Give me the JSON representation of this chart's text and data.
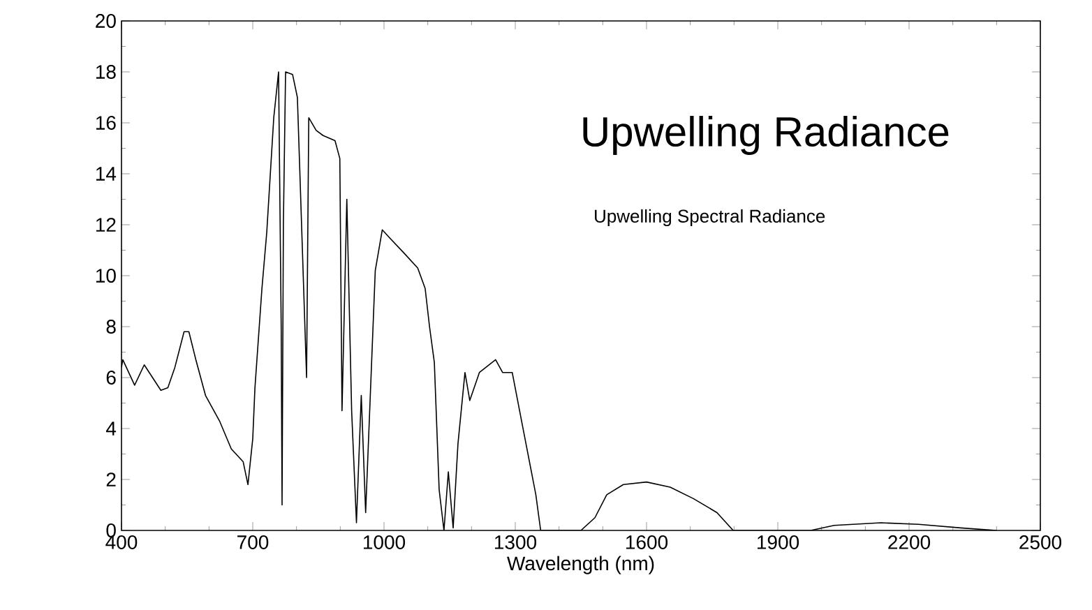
{
  "chart_data": {
    "type": "line",
    "title": "Upwelling Radiance",
    "subtitle": "Upwelling Spectral Radiance",
    "xlabel": "Wavelength (nm)",
    "xlim": [
      400,
      2500
    ],
    "ylim": [
      0,
      20
    ],
    "xticks": [
      400,
      700,
      1000,
      1300,
      1600,
      1900,
      2200,
      2500
    ],
    "yticks": [
      0,
      2,
      4,
      6,
      8,
      10,
      12,
      14,
      16,
      18,
      20
    ],
    "series": [
      {
        "color": "#000000",
        "x": [
          400,
          403,
          430,
          452,
          490,
          506,
          522,
          543,
          554,
          570,
          592,
          624,
          651,
          678,
          689,
          700,
          705,
          721,
          732,
          748,
          759,
          765,
          767,
          770,
          775,
          791,
          802,
          807,
          823,
          828,
          845,
          861,
          888,
          899,
          904,
          915,
          926,
          937,
          948,
          958,
          980,
          996,
          1012,
          1045,
          1077,
          1094,
          1104,
          1115,
          1126,
          1137,
          1147,
          1158,
          1169,
          1185,
          1196,
          1218,
          1255,
          1271,
          1293,
          1320,
          1347,
          1358,
          1450,
          1482,
          1509,
          1547,
          1600,
          1654,
          1707,
          1761,
          1798,
          1975,
          2029,
          2136,
          2222,
          2318,
          2400
        ],
        "values": [
          6.4,
          6.7,
          5.7,
          6.5,
          5.5,
          5.6,
          6.4,
          7.8,
          7.8,
          6.7,
          5.3,
          4.3,
          3.2,
          2.7,
          1.8,
          3.6,
          5.6,
          9.5,
          11.7,
          16.2,
          18,
          8,
          1,
          12,
          18,
          17.9,
          17,
          14.4,
          6,
          16.2,
          15.7,
          15.5,
          15.3,
          14.6,
          4.7,
          13,
          4.7,
          0.3,
          5.3,
          0.7,
          10.2,
          11.8,
          11.5,
          10.9,
          10.3,
          9.5,
          8,
          6.6,
          1.6,
          0,
          2.3,
          0.1,
          3.4,
          6.2,
          5.1,
          6.2,
          6.7,
          6.2,
          6.2,
          3.8,
          1.4,
          0,
          0,
          0.5,
          1.4,
          1.8,
          1.9,
          1.7,
          1.25,
          0.7,
          0,
          0,
          0.2,
          0.3,
          0.24,
          0.1,
          0
        ]
      }
    ]
  }
}
